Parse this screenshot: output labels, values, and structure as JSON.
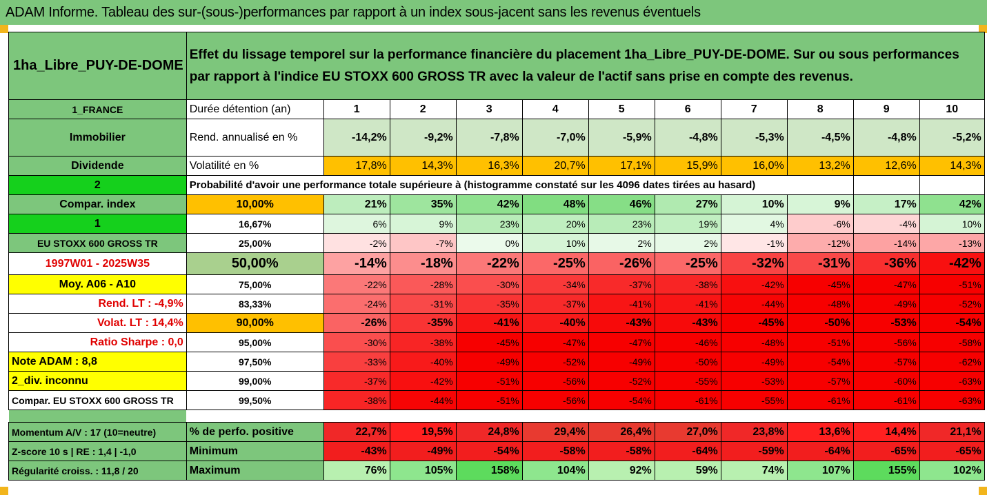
{
  "title": "ADAM Informe. Tableau des sur-(sous-)performances par rapport à un index sous-jacent sans les revenus éventuels",
  "asset": "1ha_Libre_PUY-DE-DOME",
  "description": "Effet du lissage temporel sur la performance financière du placement 1ha_Libre_PUY-DE-DOME. Sur ou sous performances par rapport à l'indice EU STOXX 600 GROSS TR avec la valeur de l'actif sans prise en compte des revenus.",
  "colors": {
    "green": "#7dc67c",
    "orange": "#ffc000",
    "yellow": "#ffff00",
    "bright_green": "#15d01c"
  },
  "side": {
    "country": "1_FRANCE",
    "category": "Immobilier",
    "dividend": "Dividende",
    "num2": "2",
    "compar_index": "Compar. index",
    "num1": "1",
    "index_name": "EU STOXX 600 GROSS TR",
    "period": "1997W01 - 2025W35",
    "moy": "Moy. A06 - A10",
    "rend_lt": "Rend. LT :   -4,9%",
    "volat_lt": "Volat. LT :   14,4%",
    "sharpe": "Ratio Sharpe :   0,0",
    "note": "Note ADAM : 8,8",
    "div": "2_div. inconnu",
    "compar2": "Compar. EU STOXX 600 GROSS TR"
  },
  "holding_label": "Durée détention (an)",
  "years": [
    "1",
    "2",
    "3",
    "4",
    "5",
    "6",
    "7",
    "8",
    "9",
    "10"
  ],
  "rend_label": "Rend. annualisé en %",
  "rend": [
    "-14,2%",
    "-9,2%",
    "-7,8%",
    "-7,0%",
    "-5,9%",
    "-4,8%",
    "-5,3%",
    "-4,5%",
    "-4,8%",
    "-5,2%"
  ],
  "vol_label": "Volatilité en %",
  "vol": [
    "17,8%",
    "14,3%",
    "16,3%",
    "20,7%",
    "17,1%",
    "15,9%",
    "16,0%",
    "13,2%",
    "12,6%",
    "14,3%"
  ],
  "prob_label": "Probabilité d'avoir une performance totale supérieure à (histogramme constaté sur les 4096 dates tirées au hasard)",
  "quantiles": [
    {
      "p": "10,00%",
      "v": [
        "21%",
        "35%",
        "42%",
        "48%",
        "46%",
        "27%",
        "10%",
        "9%",
        "17%",
        "42%"
      ]
    },
    {
      "p": "16,67%",
      "v": [
        "6%",
        "9%",
        "23%",
        "20%",
        "23%",
        "19%",
        "4%",
        "-6%",
        "-4%",
        "10%"
      ]
    },
    {
      "p": "25,00%",
      "v": [
        "-2%",
        "-7%",
        "0%",
        "10%",
        "2%",
        "2%",
        "-1%",
        "-12%",
        "-14%",
        "-13%"
      ]
    },
    {
      "p": "50,00%",
      "v": [
        "-14%",
        "-18%",
        "-22%",
        "-25%",
        "-26%",
        "-25%",
        "-32%",
        "-31%",
        "-36%",
        "-42%"
      ]
    },
    {
      "p": "75,00%",
      "v": [
        "-22%",
        "-28%",
        "-30%",
        "-34%",
        "-37%",
        "-38%",
        "-42%",
        "-45%",
        "-47%",
        "-51%"
      ]
    },
    {
      "p": "83,33%",
      "v": [
        "-24%",
        "-31%",
        "-35%",
        "-37%",
        "-41%",
        "-41%",
        "-44%",
        "-48%",
        "-49%",
        "-52%"
      ]
    },
    {
      "p": "90,00%",
      "v": [
        "-26%",
        "-35%",
        "-41%",
        "-40%",
        "-43%",
        "-43%",
        "-45%",
        "-50%",
        "-53%",
        "-54%"
      ]
    },
    {
      "p": "95,00%",
      "v": [
        "-30%",
        "-38%",
        "-45%",
        "-47%",
        "-47%",
        "-46%",
        "-48%",
        "-51%",
        "-56%",
        "-58%"
      ]
    },
    {
      "p": "97,50%",
      "v": [
        "-33%",
        "-40%",
        "-49%",
        "-52%",
        "-49%",
        "-50%",
        "-49%",
        "-54%",
        "-57%",
        "-62%"
      ]
    },
    {
      "p": "99,00%",
      "v": [
        "-37%",
        "-42%",
        "-51%",
        "-56%",
        "-52%",
        "-55%",
        "-53%",
        "-57%",
        "-60%",
        "-63%"
      ]
    },
    {
      "p": "99,50%",
      "v": [
        "-38%",
        "-44%",
        "-51%",
        "-56%",
        "-54%",
        "-61%",
        "-55%",
        "-61%",
        "-61%",
        "-63%"
      ]
    }
  ],
  "bottom": [
    {
      "left": "Momentum A/V : 17 (10=neutre)",
      "label": "% de perfo. positive",
      "v": [
        "22,7%",
        "19,5%",
        "24,8%",
        "29,4%",
        "26,4%",
        "27,0%",
        "23,8%",
        "13,6%",
        "14,4%",
        "21,1%"
      ]
    },
    {
      "left": "Z-score 10 s  |  RE : 1,4  |  -1,0",
      "label": "Minimum",
      "v": [
        "-43%",
        "-49%",
        "-54%",
        "-58%",
        "-58%",
        "-64%",
        "-59%",
        "-64%",
        "-65%",
        "-65%"
      ]
    },
    {
      "left": "Régularité croiss. : 11,8 / 20",
      "label": "Maximum",
      "v": [
        "76%",
        "105%",
        "158%",
        "104%",
        "92%",
        "59%",
        "74%",
        "107%",
        "155%",
        "102%"
      ]
    }
  ]
}
